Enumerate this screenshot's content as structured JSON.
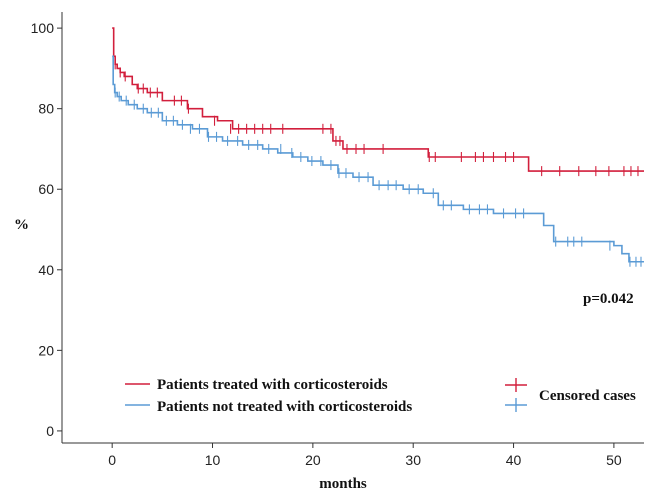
{
  "chart_data": {
    "type": "line",
    "title": "",
    "xlabel": "months",
    "ylabel": "%",
    "xlim": [
      -5,
      53
    ],
    "ylim": [
      -3,
      104
    ],
    "xticks": [
      0,
      10,
      20,
      30,
      40,
      50
    ],
    "yticks": [
      0,
      20,
      40,
      60,
      80,
      100
    ],
    "grid": false,
    "legend_position": "bottom",
    "annotation": "p=0.042",
    "colors": {
      "treated": "#d21f3c",
      "not_treated": "#5b9bd5"
    },
    "series": [
      {
        "name": "Patients treated with corticosteroids",
        "step": true,
        "x": [
          0,
          0.15,
          0.3,
          0.5,
          0.8,
          1.2,
          2.0,
          2.5,
          3.5,
          5.0,
          7.5,
          9.0,
          10.5,
          12.0,
          22.0,
          23.0,
          31.5,
          41.5,
          53.0
        ],
        "y": [
          100,
          93,
          91,
          90,
          89,
          88,
          86,
          85,
          84,
          82,
          80,
          78,
          77,
          75,
          72,
          70,
          68,
          64.5,
          64.5
        ],
        "censored_x": [
          0.3,
          0.8,
          1.3,
          2.6,
          3.1,
          3.8,
          4.5,
          6.2,
          6.9,
          7.6,
          10.2,
          11.8,
          12.6,
          13.4,
          14.2,
          15.0,
          15.8,
          17.0,
          21.0,
          21.8,
          22.3,
          22.7,
          23.4,
          24.3,
          25.1,
          27.0,
          31.6,
          32.2,
          34.8,
          36.2,
          37.0,
          38.0,
          39.2,
          40.0,
          42.8,
          44.6,
          46.5,
          48.2,
          49.5,
          51.0,
          51.7,
          52.4
        ],
        "censored_y": [
          91,
          89,
          88,
          85,
          85,
          84,
          84,
          82,
          82,
          80,
          77,
          75,
          75,
          75,
          75,
          75,
          75,
          75,
          75,
          75,
          72,
          72,
          70,
          70,
          70,
          70,
          68,
          68,
          68,
          68,
          68,
          68,
          68,
          68,
          64.5,
          64.5,
          64.5,
          64.5,
          64.5,
          64.5,
          64.5,
          64.5
        ]
      },
      {
        "name": "Patients not treated with corticosteroids",
        "step": true,
        "x": [
          0,
          0.1,
          0.25,
          0.5,
          0.9,
          1.6,
          2.5,
          3.5,
          5.0,
          6.5,
          8.0,
          9.5,
          11.0,
          13.0,
          15.0,
          16.5,
          18.0,
          19.5,
          21.0,
          22.5,
          24.0,
          26.0,
          29.0,
          31.0,
          32.5,
          35.0,
          38.0,
          43.0,
          44.0,
          50.0,
          50.8,
          51.5,
          53.0
        ],
        "y": [
          93,
          86,
          84,
          83,
          82,
          81,
          80,
          79,
          77,
          76,
          75,
          73,
          72,
          71,
          70,
          69,
          68,
          67,
          66,
          64,
          63,
          61,
          60,
          59,
          56,
          55,
          54,
          51,
          47,
          46,
          44,
          42,
          42
        ],
        "censored_x": [
          0.3,
          0.7,
          1.4,
          2.2,
          3.1,
          3.9,
          4.6,
          5.4,
          6.1,
          7.0,
          7.8,
          8.7,
          9.6,
          10.4,
          11.5,
          12.5,
          13.6,
          14.5,
          15.6,
          16.8,
          17.9,
          18.8,
          19.9,
          20.8,
          21.8,
          22.6,
          23.3,
          24.6,
          25.5,
          26.6,
          27.5,
          28.3,
          29.6,
          30.5,
          32.0,
          33.0,
          33.8,
          35.6,
          36.6,
          37.4,
          39.0,
          40.2,
          41.0,
          44.2,
          45.4,
          46.0,
          46.8,
          49.6,
          51.6,
          52.2,
          52.7
        ],
        "censored_y": [
          84,
          83,
          82,
          81,
          80,
          79,
          79,
          77,
          77,
          76,
          75,
          75,
          73,
          73,
          72,
          72,
          71,
          71,
          70,
          70,
          69,
          68,
          67,
          67,
          66,
          64,
          64,
          63,
          63,
          61,
          61,
          61,
          60,
          60,
          59,
          56,
          56,
          55,
          55,
          55,
          54,
          54,
          54,
          47,
          47,
          47,
          47,
          46,
          42,
          42,
          42
        ]
      }
    ],
    "legend": {
      "treated": "Patients treated with corticosteroids",
      "not_treated": "Patients not treated with corticosteroids",
      "censored": "Censored cases"
    }
  }
}
